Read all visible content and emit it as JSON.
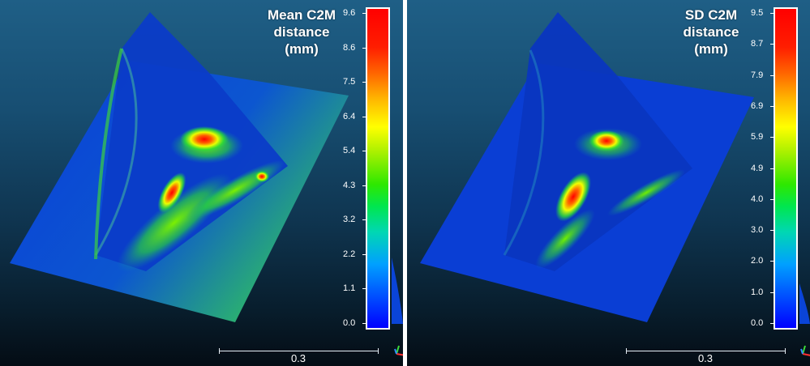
{
  "left_panel": {
    "colorbar_title_lines": [
      "Mean C2M",
      "distance",
      "(mm)"
    ],
    "ticks": [
      "9.6",
      "8.6",
      "7.5",
      "6.4",
      "5.4",
      "4.3",
      "3.2",
      "2.2",
      "1.1",
      "0.0"
    ],
    "scale_label": "0.3"
  },
  "right_panel": {
    "colorbar_title_lines": [
      "SD C2M",
      "distance",
      "(mm)"
    ],
    "ticks": [
      "9.5",
      "8.7",
      "7.9",
      "6.9",
      "5.9",
      "4.9",
      "4.0",
      "3.0",
      "2.0",
      "1.0",
      "0.0"
    ],
    "scale_label": "0.3"
  },
  "colors": {
    "background_top": "#1f5f86",
    "background_bottom": "#040c14",
    "surface_base": "#0a3ad0",
    "hotspot": "#ff0000"
  },
  "icons": [
    "axis-triad-icon"
  ]
}
